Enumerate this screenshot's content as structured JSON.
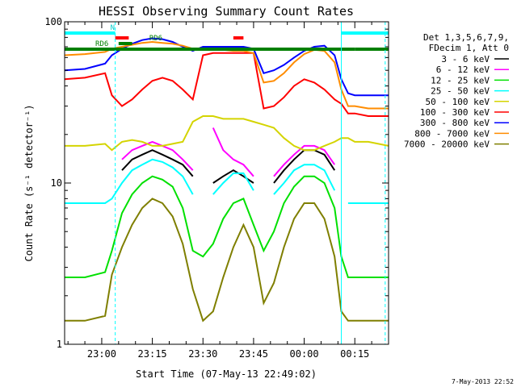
{
  "chart_data": {
    "type": "line",
    "title": "HESSI Observing Summary Count Rates",
    "xlabel": "Start Time (07-May-13 22:49:02)",
    "ylabel": "Count Rate (s⁻¹ detector⁻¹)",
    "y_scale": "log",
    "ylim": [
      1,
      100
    ],
    "xlim_minutes": [
      0,
      96
    ],
    "x_ticks": [
      {
        "minute": 11,
        "label": "23:00"
      },
      {
        "minute": 26,
        "label": "23:15"
      },
      {
        "minute": 41,
        "label": "23:30"
      },
      {
        "minute": 56,
        "label": "23:45"
      },
      {
        "minute": 71,
        "label": "00:00"
      },
      {
        "minute": 86,
        "label": "00:15"
      }
    ],
    "y_ticks": [
      {
        "value": 1,
        "label": "1"
      },
      {
        "value": 10,
        "label": "10"
      },
      {
        "value": 100,
        "label": "100"
      }
    ],
    "legend_header": [
      "Det 1,3,5,6,7,9,",
      "FDecim 1, Att 0"
    ],
    "legend_position": "right",
    "grid": false,
    "x": [
      0,
      6,
      12,
      14,
      17,
      20,
      23,
      26,
      29,
      32,
      35,
      38,
      41,
      44,
      47,
      50,
      53,
      56,
      59,
      62,
      65,
      68,
      71,
      74,
      77,
      80,
      82,
      84,
      86,
      90,
      96
    ],
    "series": [
      {
        "name": "3 - 6 keV",
        "color": "#000000",
        "values": [
          null,
          null,
          null,
          null,
          12,
          14,
          15,
          16,
          15,
          14,
          13,
          11,
          null,
          10,
          11,
          12,
          11,
          10,
          null,
          10,
          12,
          14,
          16,
          16,
          15,
          12,
          null,
          null,
          null,
          null,
          null
        ]
      },
      {
        "name": "6 - 12 keV",
        "color": "#ff00ff",
        "values": [
          null,
          null,
          null,
          null,
          14,
          16,
          17,
          18,
          17,
          16,
          14,
          12,
          null,
          22,
          16,
          14,
          13,
          11,
          null,
          11,
          13,
          15,
          17,
          17,
          16,
          13,
          null,
          null,
          null,
          null,
          null
        ]
      },
      {
        "name": "12 - 25 keV",
        "color": "#00e000",
        "values": [
          2.6,
          2.6,
          2.8,
          3.8,
          6.5,
          8.5,
          10,
          11,
          10.5,
          9.5,
          7,
          3.8,
          3.5,
          4.2,
          6,
          7.5,
          8,
          5.5,
          3.8,
          5,
          7.5,
          9.5,
          11,
          11,
          10,
          7,
          3.5,
          2.6,
          2.6,
          2.6,
          2.6
        ]
      },
      {
        "name": "25 - 50 keV",
        "color": "#00ffff",
        "values": [
          7.5,
          7.5,
          7.5,
          8,
          10,
          12,
          13,
          14,
          13.5,
          12.5,
          11,
          8.5,
          null,
          8.5,
          10,
          11.5,
          11.5,
          9,
          null,
          8.5,
          10,
          12,
          13,
          13,
          12,
          9,
          null,
          7.5,
          7.5,
          7.5,
          7.5
        ]
      },
      {
        "name": "50 - 100 keV",
        "color": "#d4d400",
        "values": [
          17,
          17,
          17.5,
          16,
          18,
          18.5,
          18,
          17,
          17,
          17.5,
          18,
          24,
          26,
          26,
          25,
          25,
          25,
          24,
          23,
          22,
          19,
          17,
          16,
          16,
          17,
          18,
          19,
          19,
          18,
          18,
          17
        ]
      },
      {
        "name": "100 - 300 keV",
        "color": "#ff0000",
        "values": [
          44,
          45,
          48,
          35,
          30,
          33,
          38,
          43,
          45,
          43,
          38,
          33,
          62,
          64,
          64,
          64,
          64,
          64,
          29,
          30,
          34,
          40,
          44,
          42,
          38,
          33,
          31,
          27,
          27,
          26,
          26
        ]
      },
      {
        "name": "300 - 800 keV",
        "color": "#0000ff",
        "values": [
          50,
          51,
          55,
          62,
          68,
          73,
          77,
          79,
          78,
          75,
          70,
          66,
          70,
          70,
          70,
          70,
          70,
          68,
          48,
          50,
          54,
          60,
          66,
          70,
          71,
          62,
          44,
          36,
          35,
          35,
          35
        ]
      },
      {
        "name": "800 - 7000 keV",
        "color": "#ff8c00",
        "values": [
          62,
          63,
          65,
          68,
          70,
          72,
          74,
          75,
          74,
          73,
          71,
          68,
          67,
          67,
          67,
          66,
          66,
          64,
          42,
          43,
          48,
          56,
          63,
          67,
          66,
          56,
          38,
          30,
          30,
          29,
          29
        ]
      },
      {
        "name": "7000 - 20000 keV",
        "color": "#7f7f00",
        "values": [
          1.4,
          1.4,
          1.5,
          2.7,
          4,
          5.5,
          7,
          8,
          7.5,
          6.2,
          4.2,
          2.2,
          1.4,
          1.6,
          2.6,
          4,
          5.5,
          4,
          1.8,
          2.4,
          4,
          6,
          7.5,
          7.5,
          6,
          3.5,
          1.6,
          1.4,
          1.4,
          1.4,
          1.4
        ]
      }
    ],
    "flag_bars": [
      {
        "label": "N",
        "color": "#00ffff",
        "start": 0,
        "end": 15
      },
      {
        "label": "",
        "color": "#00ffff",
        "start": 82,
        "end": 96
      },
      {
        "label": "",
        "color": "#ff0000",
        "start": 15,
        "end": 17
      },
      {
        "label": "",
        "color": "#ff0000",
        "start": 17,
        "end": 19
      },
      {
        "label": "",
        "color": "#ff0000",
        "start": 50,
        "end": 53
      },
      {
        "label": "RD6",
        "color": "#007f00",
        "start": 0,
        "end": 86
      },
      {
        "label": "RD6",
        "color": "#007f00",
        "start": 16,
        "end": 20
      },
      {
        "label": "",
        "color": "#007f00",
        "start": 86,
        "end": 96
      }
    ]
  },
  "footer": {
    "timestamp": "7-May-2013 22:52"
  }
}
